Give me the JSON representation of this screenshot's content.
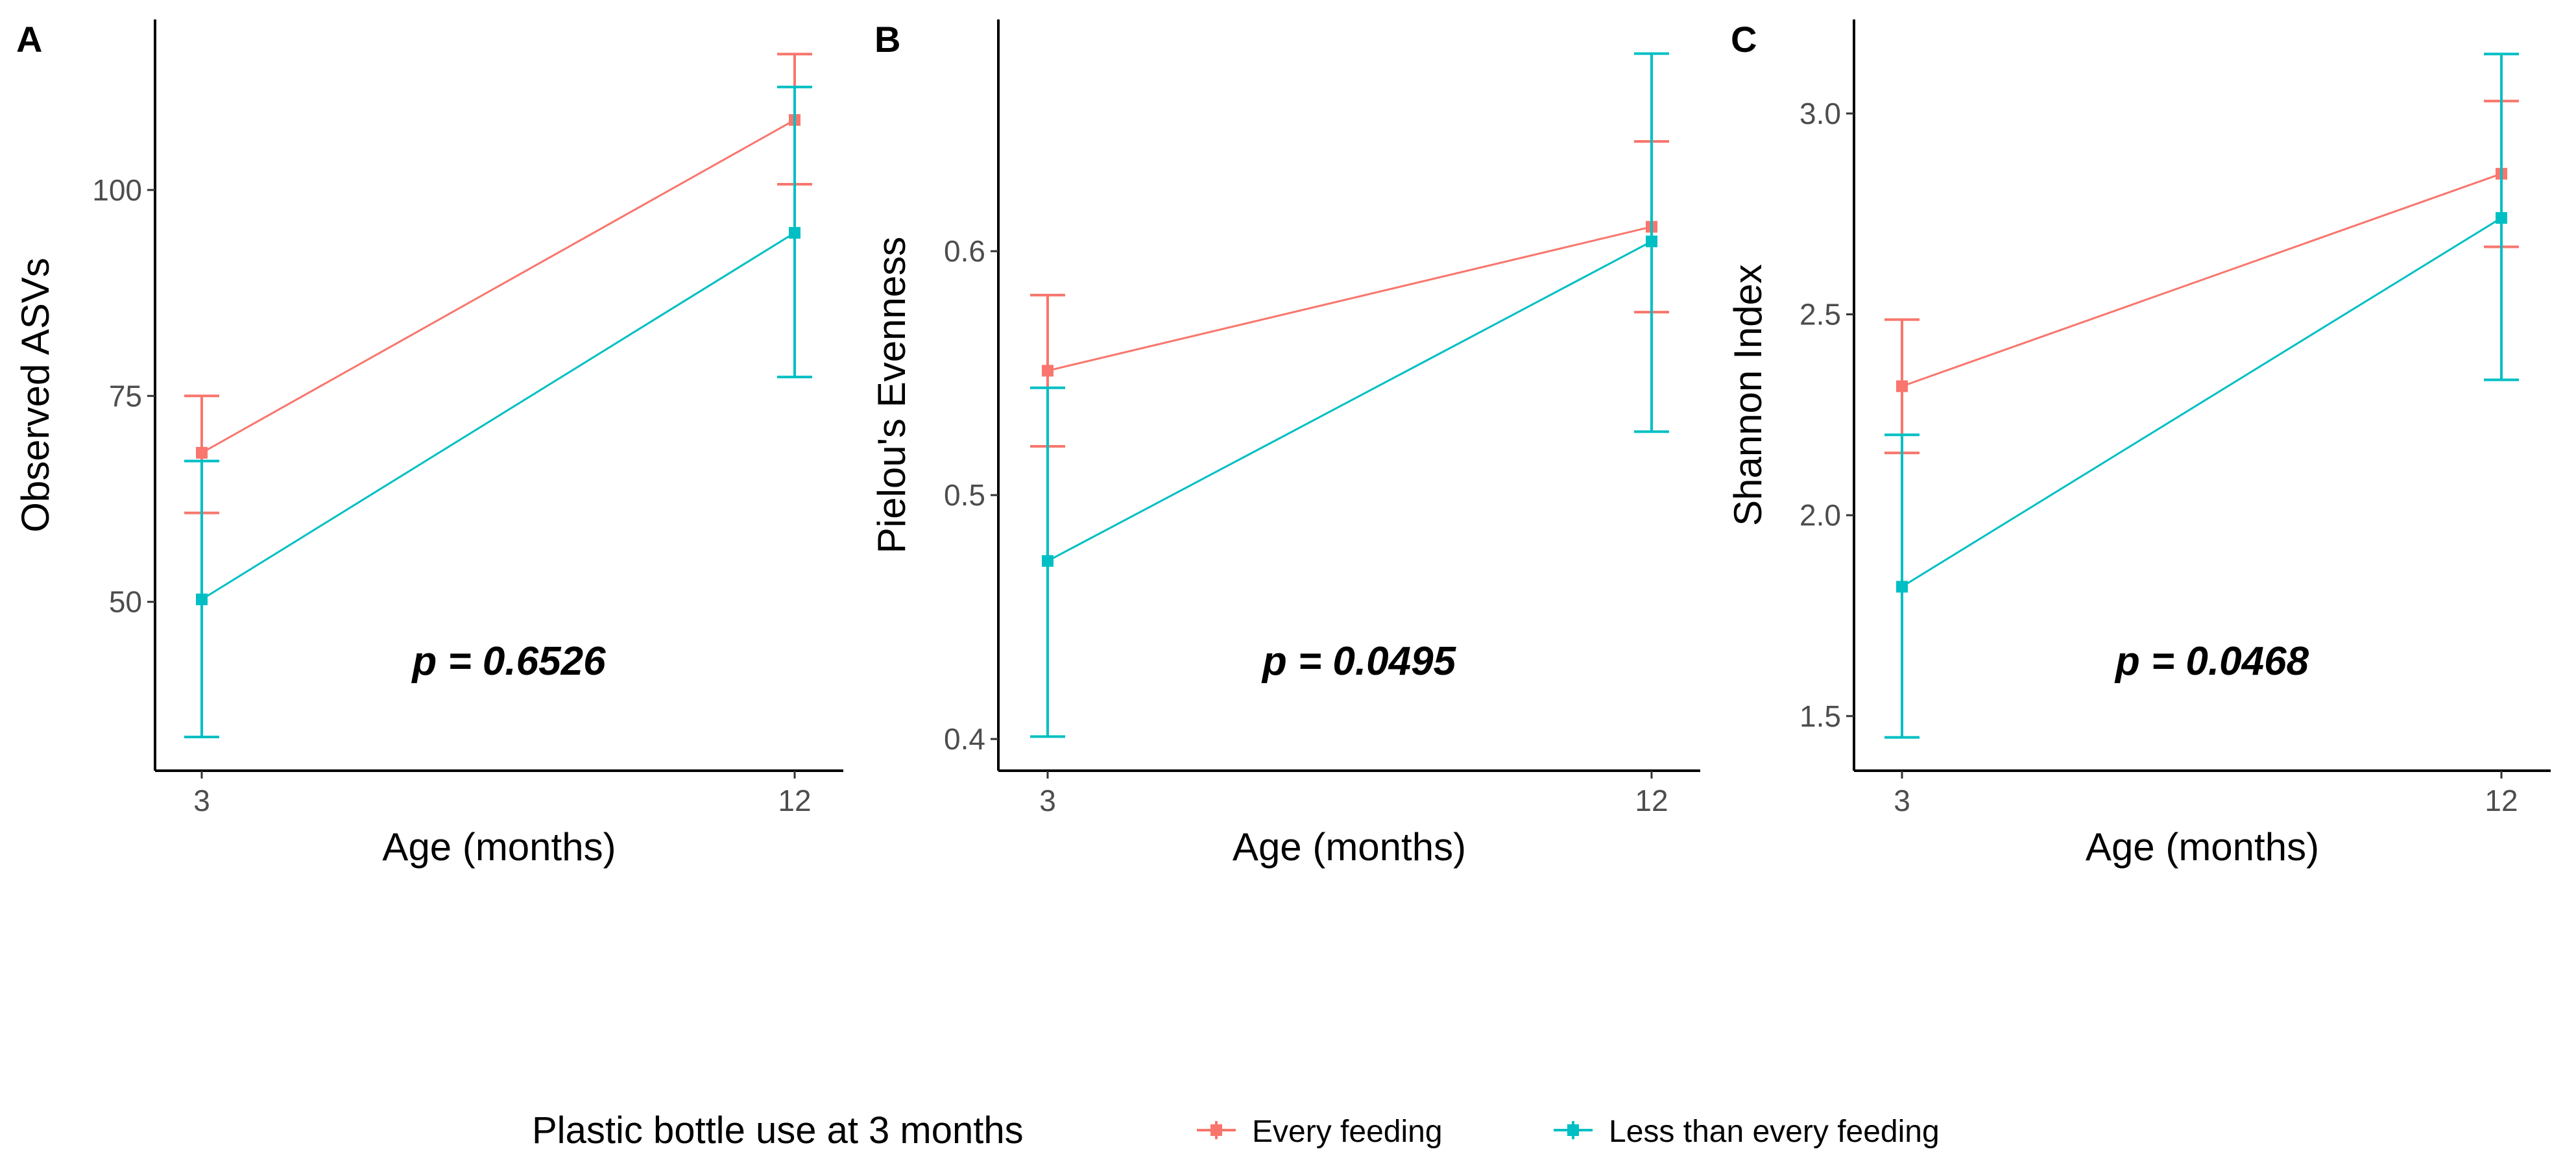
{
  "legend": {
    "title": "Plastic bottle use at 3 months",
    "entries": [
      {
        "label": "Every feeding",
        "color": "#F8766D"
      },
      {
        "label": "Less than every feeding",
        "color": "#00BFC4"
      }
    ]
  },
  "chart_data": [
    {
      "type": "line",
      "panel": "A",
      "xlabel": "Age (months)",
      "ylabel": "Observed ASVs",
      "x": [
        3,
        12
      ],
      "x_ticks": [
        "3",
        "12"
      ],
      "y_ticks": [
        50,
        75,
        100
      ],
      "y_tick_labels": [
        "50",
        "75",
        "100"
      ],
      "ylim": [
        29.5,
        120.7
      ],
      "annotation": "p = 0.6526",
      "series": [
        {
          "name": "Every feeding",
          "values": [
            68.1,
            108.5
          ],
          "lower": [
            60.8,
            100.7
          ],
          "upper": [
            75.0,
            116.5
          ]
        },
        {
          "name": "Less than every feeding",
          "values": [
            50.3,
            94.8
          ],
          "lower": [
            33.6,
            77.3
          ],
          "upper": [
            67.1,
            112.5
          ]
        }
      ]
    },
    {
      "type": "line",
      "panel": "B",
      "xlabel": "Age (months)",
      "ylabel": "Pielou's Evenness",
      "x": [
        3,
        12
      ],
      "x_ticks": [
        "3",
        "12"
      ],
      "y_ticks": [
        0.4,
        0.5,
        0.6
      ],
      "y_tick_labels": [
        "0.4",
        "0.5",
        "0.6"
      ],
      "ylim": [
        0.387,
        0.695
      ],
      "annotation": "p = 0.0495",
      "series": [
        {
          "name": "Every feeding",
          "values": [
            0.551,
            0.61
          ],
          "lower": [
            0.52,
            0.575
          ],
          "upper": [
            0.582,
            0.645
          ]
        },
        {
          "name": "Less than every feeding",
          "values": [
            0.473,
            0.604
          ],
          "lower": [
            0.401,
            0.526
          ],
          "upper": [
            0.544,
            0.681
          ]
        }
      ]
    },
    {
      "type": "line",
      "panel": "C",
      "xlabel": "Age (months)",
      "ylabel": "Shannon Index",
      "x": [
        3,
        12
      ],
      "x_ticks": [
        "3",
        "12"
      ],
      "y_ticks": [
        1.5,
        2.0,
        2.5,
        3.0
      ],
      "y_tick_labels": [
        "1.5",
        "2.0",
        "2.5",
        "3.0"
      ],
      "ylim": [
        1.364,
        3.234
      ],
      "annotation": "p = 0.0468",
      "series": [
        {
          "name": "Every feeding",
          "values": [
            2.321,
            2.85
          ],
          "lower": [
            2.155,
            2.668
          ],
          "upper": [
            2.487,
            3.031
          ]
        },
        {
          "name": "Less than every feeding",
          "values": [
            1.822,
            2.74
          ],
          "lower": [
            1.447,
            2.337
          ],
          "upper": [
            2.2,
            3.148
          ]
        }
      ]
    }
  ]
}
